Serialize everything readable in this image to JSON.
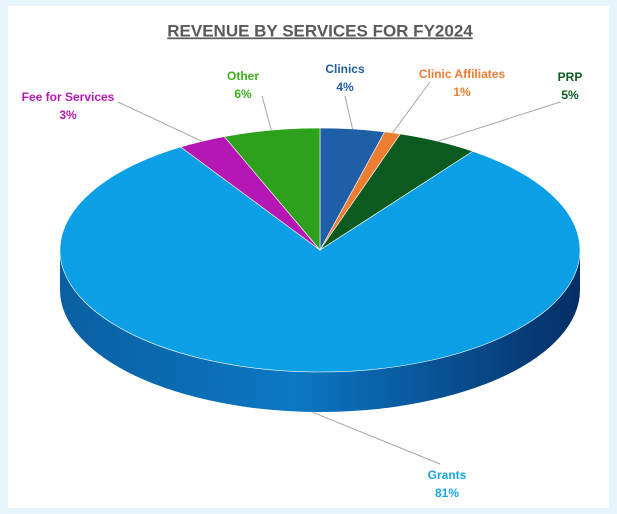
{
  "chart_data": {
    "type": "pie",
    "title": "REVENUE BY SERVICES FOR FY2024",
    "categories": [
      "Clinics",
      "Clinic Affiliates",
      "PRP",
      "Grants",
      "Fee for Services",
      "Other"
    ],
    "values": [
      4,
      1,
      5,
      81,
      3,
      6
    ],
    "value_labels": [
      "4%",
      "1%",
      "5%",
      "81%",
      "3%",
      "6%"
    ],
    "colors": [
      "#1f5fa8",
      "#ed7d31",
      "#0b5a1f",
      "#0ba0e6",
      "#b517b5",
      "#2ea11c"
    ]
  }
}
